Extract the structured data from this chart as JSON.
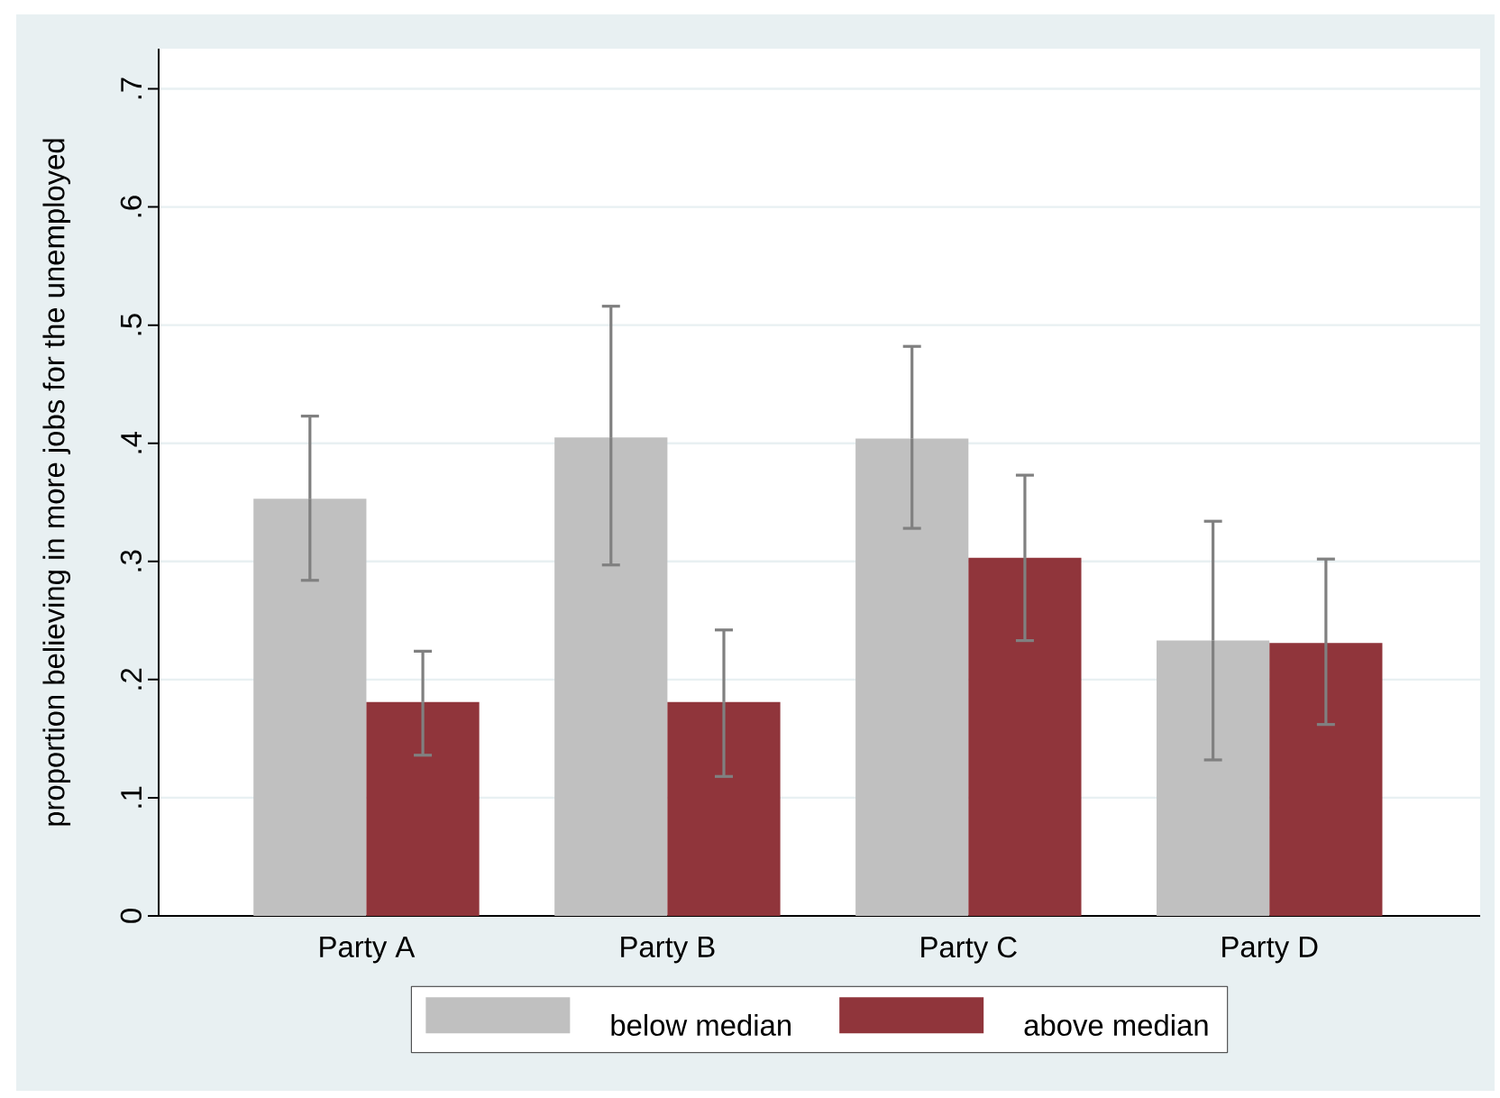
{
  "chart_data": {
    "type": "bar",
    "ylabel": "proportion believing in more jobs for the unemployed",
    "categories": [
      "Party A",
      "Party B",
      "Party C",
      "Party D"
    ],
    "series": [
      {
        "name": "below median",
        "color": "#c0c0c0",
        "values": [
          0.353,
          0.405,
          0.404,
          0.233
        ],
        "errors": [
          [
            0.284,
            0.423
          ],
          [
            0.297,
            0.516
          ],
          [
            0.328,
            0.482
          ],
          [
            0.132,
            0.334
          ]
        ]
      },
      {
        "name": "above median",
        "color": "#90353b",
        "values": [
          0.181,
          0.181,
          0.303,
          0.231
        ],
        "errors": [
          [
            0.136,
            0.224
          ],
          [
            0.118,
            0.242
          ],
          [
            0.233,
            0.373
          ],
          [
            0.162,
            0.302
          ]
        ]
      }
    ],
    "ylim": [
      0,
      0.734
    ],
    "yticks": [
      0,
      {
        "value": 0.1,
        "label": ".1"
      },
      {
        "value": 0.2,
        "label": ".2"
      },
      {
        "value": 0.3,
        "label": ".3"
      },
      {
        "value": 0.4,
        "label": ".4"
      },
      {
        "value": 0.5,
        "label": ".5"
      },
      {
        "value": 0.6,
        "label": ".6"
      },
      {
        "value": 0.7,
        "label": ".7"
      }
    ],
    "grid": "y",
    "legend": "bottom"
  }
}
